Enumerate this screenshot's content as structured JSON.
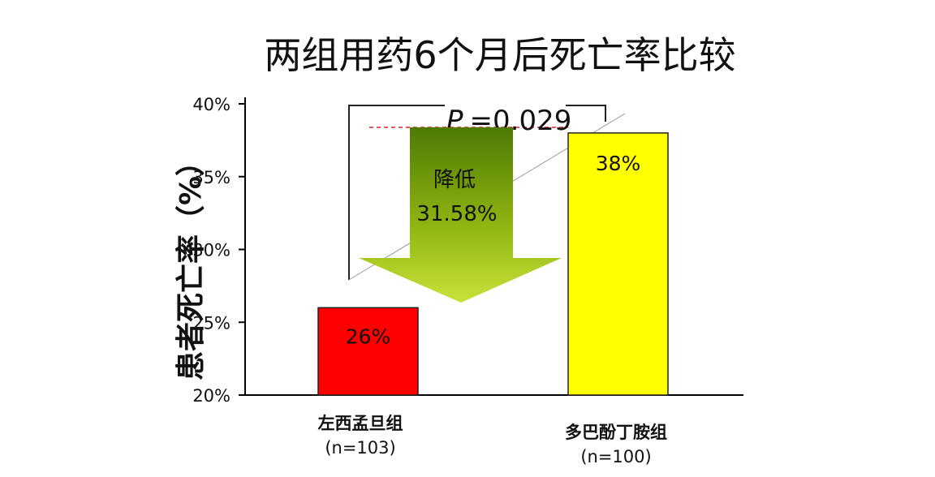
{
  "chart_data": {
    "type": "bar",
    "title": "两组用药6个月后死亡率比较",
    "ylabel": "患者死亡率（%）",
    "ylim": [
      20,
      40
    ],
    "yticks": [
      "20%",
      "25%",
      "30%",
      "35%",
      "40%"
    ],
    "ytick_values": [
      20,
      25,
      30,
      35,
      40
    ],
    "categories": [
      {
        "name": "左西孟旦组",
        "n": "(n=103)"
      },
      {
        "name": "多巴酚丁胺组",
        "n": "(n=100)"
      }
    ],
    "values": [
      26,
      38
    ],
    "data_labels": [
      "26%",
      "38%"
    ],
    "colors": [
      "#ff0000",
      "#ffff00"
    ],
    "p_label_italic": "P",
    "p_label_value": "=0.029",
    "arrow_label_line1": "降低",
    "arrow_label_line2": "31.58%",
    "arrow_color": "#8db410",
    "grid": false,
    "legend": "none"
  }
}
